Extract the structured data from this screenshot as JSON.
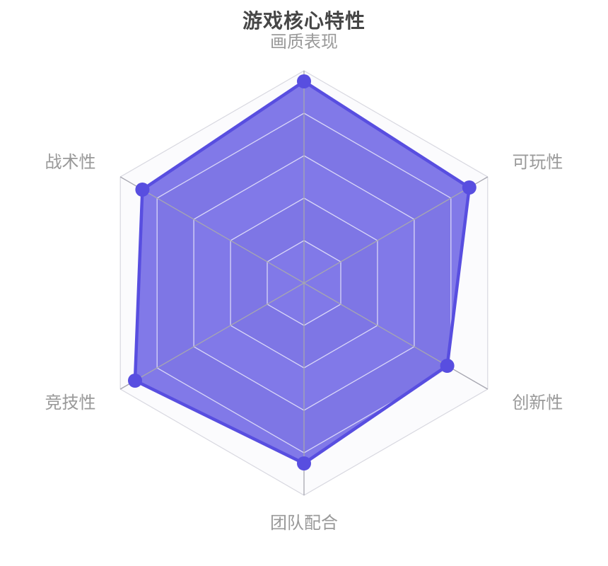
{
  "title": "游戏核心特性",
  "chart_data": {
    "type": "radar",
    "title": "游戏核心特性",
    "levels": 5,
    "indicators": [
      {
        "name": "画质表现",
        "max": 100
      },
      {
        "name": "可玩性",
        "max": 100
      },
      {
        "name": "创新性",
        "max": 100
      },
      {
        "name": "团队配合",
        "max": 100
      },
      {
        "name": "竞技性",
        "max": 100
      },
      {
        "name": "战术性",
        "max": 100
      }
    ],
    "series": [
      {
        "values": [
          95,
          90,
          78,
          85,
          92,
          88
        ]
      }
    ],
    "legend_position": "none",
    "grid": "hexagonal-rings",
    "colors": {
      "accent": "#584ee0",
      "series_fill": "rgba(88,78,224,0.75)",
      "band_light": "#fbfbfd",
      "band_dark": "#ededf1",
      "ring_line": "rgba(255,255,255,0.7)",
      "axis_line": "#a6a6b0",
      "outer_border": "#d8d8e0",
      "title_color": "#464646",
      "label_color": "#999999"
    }
  }
}
